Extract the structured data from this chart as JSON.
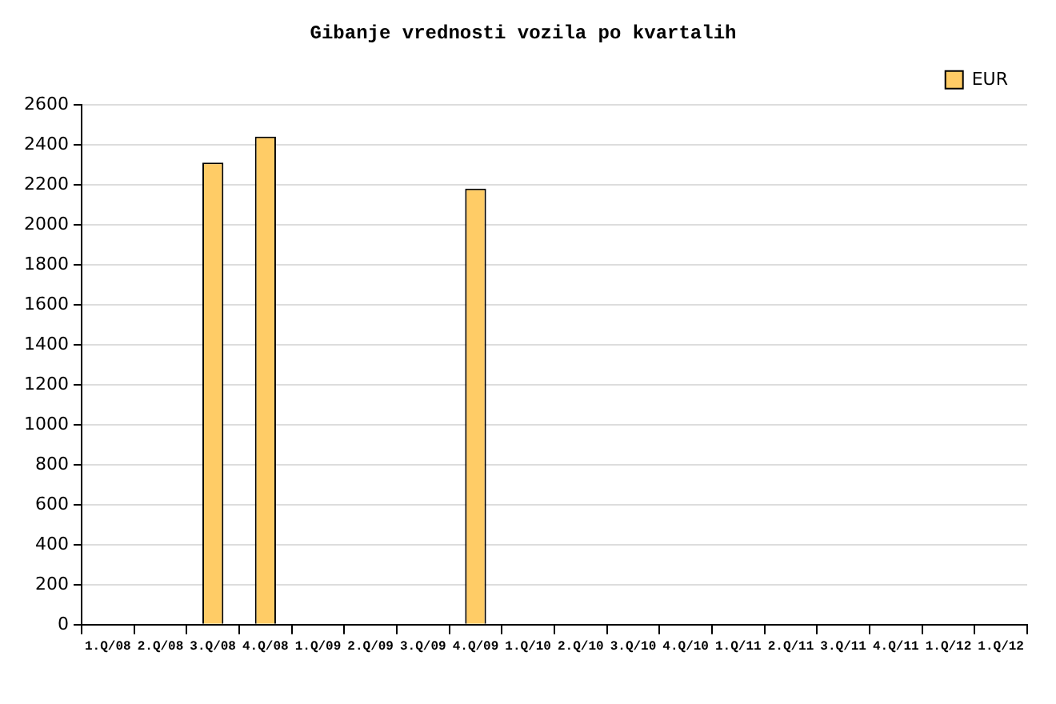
{
  "chart_data": {
    "type": "bar",
    "title": "Gibanje vrednosti vozila po kvartalih",
    "categories": [
      "1.Q/08",
      "2.Q/08",
      "3.Q/08",
      "4.Q/08",
      "1.Q/09",
      "2.Q/09",
      "3.Q/09",
      "4.Q/09",
      "1.Q/10",
      "2.Q/10",
      "3.Q/10",
      "4.Q/10",
      "1.Q/11",
      "2.Q/11",
      "3.Q/11",
      "4.Q/11",
      "1.Q/12",
      "1.Q/12"
    ],
    "series": [
      {
        "name": "EUR",
        "color": "#ffcc66",
        "values": [
          null,
          null,
          2310,
          2440,
          null,
          null,
          null,
          2180,
          null,
          null,
          null,
          null,
          null,
          null,
          null,
          null,
          null,
          null
        ]
      }
    ],
    "ylim": [
      0,
      2600
    ],
    "yticks": [
      0,
      200,
      400,
      600,
      800,
      1000,
      1200,
      1400,
      1600,
      1800,
      2000,
      2200,
      2400,
      2600
    ],
    "grid": "y",
    "legend": "top right"
  }
}
